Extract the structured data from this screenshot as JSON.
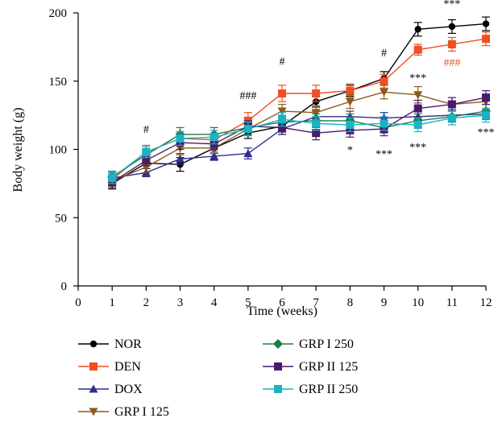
{
  "chart_data": {
    "type": "line",
    "xlabel": "Time (weeks)",
    "ylabel": "Body weight (g)",
    "xlim": [
      0,
      12
    ],
    "ylim": [
      0,
      200
    ],
    "x_ticks": [
      "0",
      "1",
      "2",
      "3",
      "4",
      "5",
      "6",
      "7",
      "8",
      "9",
      "10",
      "11",
      "12"
    ],
    "y_ticks": [
      "0",
      "50",
      "100",
      "150",
      "200"
    ],
    "x": [
      1,
      2,
      3,
      4,
      5,
      6,
      7,
      8,
      9,
      10,
      11,
      12
    ],
    "grid": false,
    "legend_position": "bottom",
    "series": [
      {
        "name": "NOR",
        "color": "#000000",
        "marker": "circle",
        "values": [
          75,
          90,
          89,
          101,
          112,
          117,
          135,
          143,
          152,
          188,
          190,
          192
        ],
        "errors": [
          4,
          4,
          5,
          4,
          4,
          4,
          4,
          4,
          5,
          5,
          5,
          5
        ]
      },
      {
        "name": "DEN",
        "color": "#f04e23",
        "marker": "square",
        "values": [
          78,
          98,
          108,
          107,
          121,
          141,
          141,
          143,
          150,
          173,
          177,
          181
        ],
        "errors": [
          4,
          5,
          5,
          4,
          6,
          6,
          6,
          5,
          5,
          4,
          5,
          5
        ]
      },
      {
        "name": "DOX",
        "color": "#2e2e8c",
        "marker": "triangle-up",
        "values": [
          79,
          83,
          93,
          95,
          97,
          115,
          124,
          124,
          123,
          124,
          125,
          126
        ],
        "errors": [
          4,
          3,
          4,
          3,
          4,
          4,
          4,
          4,
          4,
          4,
          4,
          4
        ]
      },
      {
        "name": "GRP I 125",
        "color": "#8b5a1b",
        "marker": "triangle-down",
        "values": [
          77,
          87,
          101,
          101,
          115,
          128,
          127,
          135,
          142,
          140,
          133,
          135
        ],
        "errors": [
          4,
          4,
          5,
          4,
          5,
          5,
          5,
          5,
          5,
          6,
          5,
          5
        ]
      },
      {
        "name": "GRP I 250",
        "color": "#1f7a4a",
        "marker": "diamond",
        "values": [
          80,
          96,
          111,
          111,
          116,
          120,
          121,
          121,
          116,
          121,
          124,
          128
        ],
        "errors": [
          4,
          4,
          5,
          5,
          5,
          5,
          5,
          5,
          4,
          5,
          4,
          5
        ]
      },
      {
        "name": "GRP II 125",
        "color": "#4b1a6b",
        "marker": "square",
        "values": [
          76,
          92,
          105,
          104,
          117,
          116,
          112,
          114,
          115,
          130,
          133,
          138
        ],
        "errors": [
          4,
          4,
          5,
          4,
          4,
          5,
          5,
          5,
          5,
          6,
          5,
          5
        ]
      },
      {
        "name": "GRP II 250",
        "color": "#19b3c4",
        "marker": "square",
        "values": [
          79,
          98,
          108,
          109,
          115,
          122,
          119,
          118,
          119,
          118,
          123,
          125
        ],
        "errors": [
          4,
          4,
          5,
          5,
          5,
          5,
          5,
          5,
          5,
          5,
          5,
          5
        ]
      }
    ],
    "annotations": [
      {
        "x": 2,
        "y": 112,
        "text": "#",
        "color": "#000000"
      },
      {
        "x": 5,
        "y": 137,
        "text": "###",
        "color": "#000000"
      },
      {
        "x": 6,
        "y": 162,
        "text": "#",
        "color": "#000000"
      },
      {
        "x": 9,
        "y": 168,
        "text": "#",
        "color": "#000000"
      },
      {
        "x": 11,
        "y": 161,
        "text": "###",
        "color": "#f04e23"
      },
      {
        "x": 11,
        "y": 204,
        "text": "***",
        "color": "#000000"
      },
      {
        "x": 10,
        "y": 150,
        "text": "***",
        "color": "#000000"
      },
      {
        "x": 12,
        "y": 110,
        "text": "***",
        "color": "#000000"
      },
      {
        "x": 8,
        "y": 97,
        "text": "*",
        "color": "#000000"
      },
      {
        "x": 9,
        "y": 94,
        "text": "***",
        "color": "#000000"
      },
      {
        "x": 10,
        "y": 99,
        "text": "***",
        "color": "#000000"
      }
    ]
  }
}
